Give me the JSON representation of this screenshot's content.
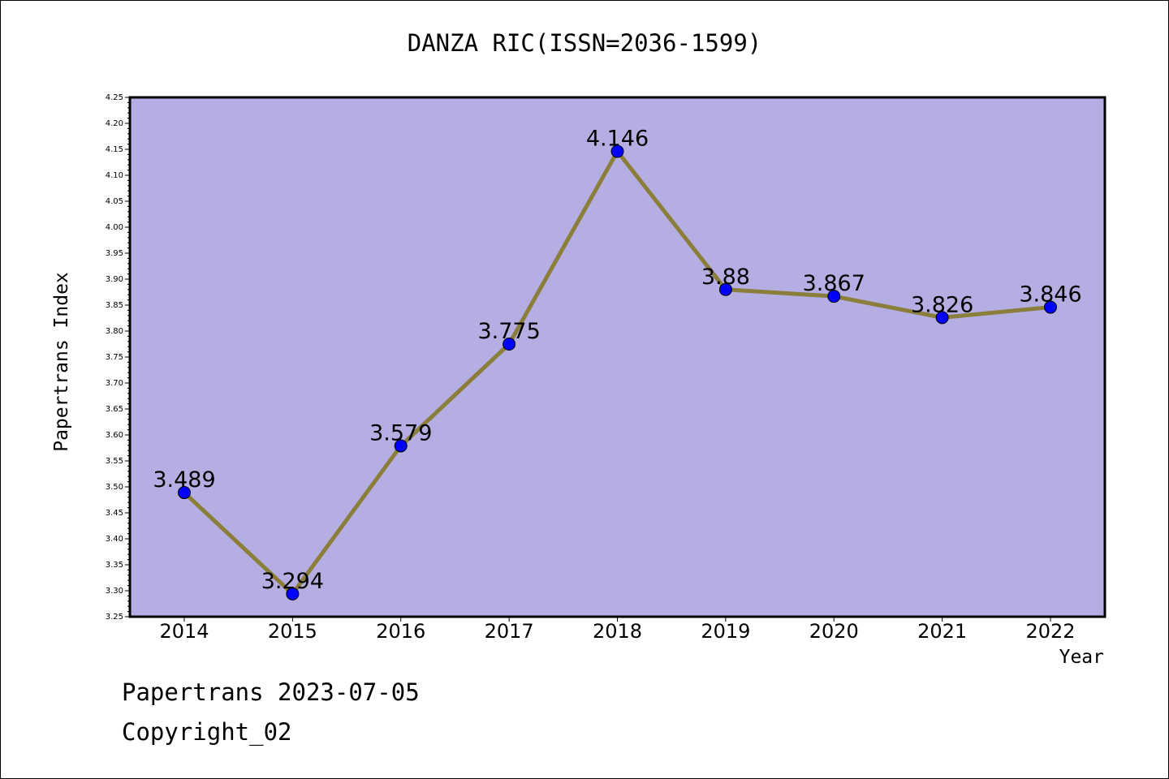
{
  "chart_data": {
    "type": "line",
    "title": "DANZA RIC(ISSN=2036-1599)",
    "xlabel": "Year",
    "ylabel": "Papertrans Index",
    "categories": [
      "2014",
      "2015",
      "2016",
      "2017",
      "2018",
      "2019",
      "2020",
      "2021",
      "2022"
    ],
    "values": [
      3.489,
      3.294,
      3.579,
      3.775,
      4.146,
      3.88,
      3.867,
      3.826,
      3.846
    ],
    "data_labels": [
      "3.489",
      "3.294",
      "3.579",
      "3.775",
      "4.146",
      "3.88",
      "3.867",
      "3.826",
      "3.846"
    ],
    "ylim": [
      3.25,
      4.25
    ],
    "yticks": [
      "3.25",
      "3.30",
      "3.35",
      "3.40",
      "3.45",
      "3.50",
      "3.55",
      "3.60",
      "3.65",
      "3.70",
      "3.75",
      "3.80",
      "3.85",
      "3.90",
      "3.95",
      "4.00",
      "4.05",
      "4.10",
      "4.15",
      "4.20",
      "4.25"
    ],
    "grid": false,
    "colors": {
      "plot_bg": "#b5aee2",
      "line": "#8b7d3a",
      "marker": "#0000ff"
    }
  },
  "footer": {
    "line1": "Papertrans 2023-07-05",
    "line2": "Copyright_02"
  }
}
